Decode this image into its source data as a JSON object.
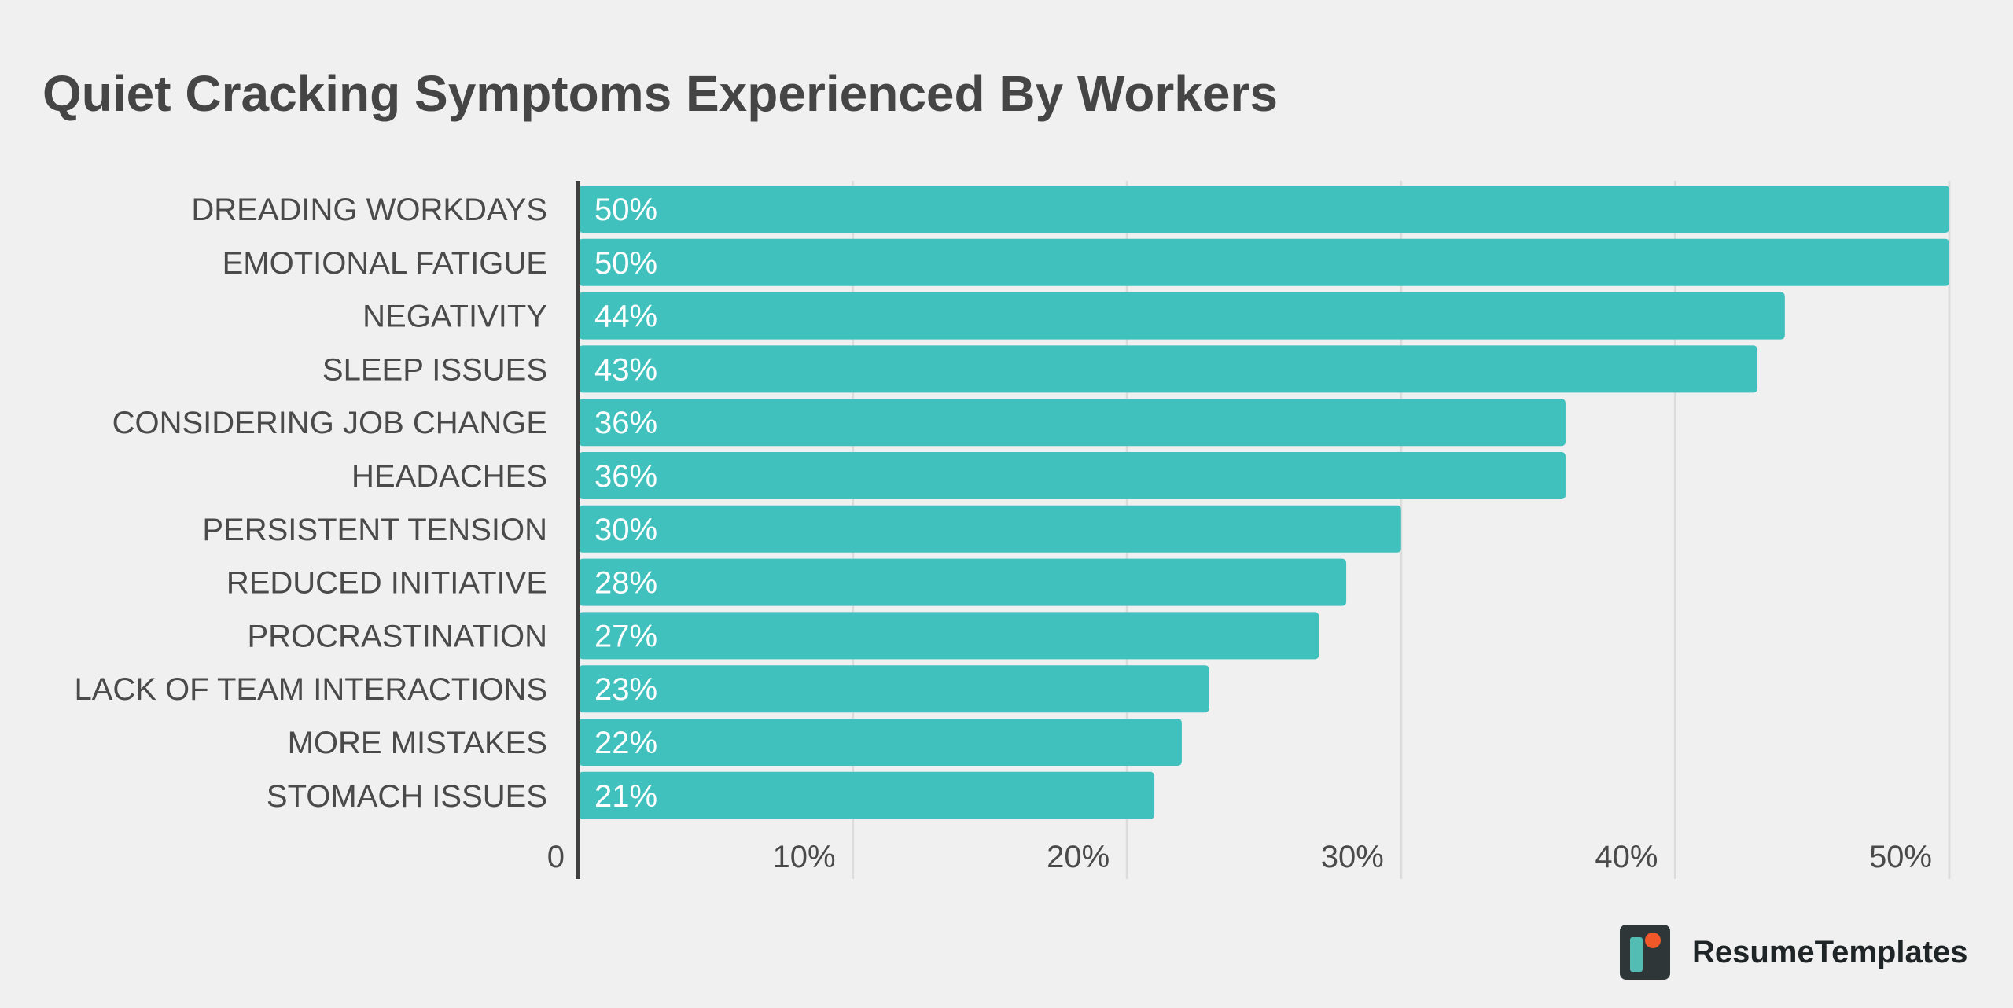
{
  "chart_data": {
    "type": "bar",
    "orientation": "horizontal",
    "title": "Quiet Cracking Symptoms Experienced By Workers",
    "categories": [
      "DREADING WORKDAYS",
      "EMOTIONAL FATIGUE",
      "NEGATIVITY",
      "SLEEP ISSUES",
      "CONSIDERING JOB CHANGE",
      "HEADACHES",
      "PERSISTENT TENSION",
      "REDUCED INITIATIVE",
      "PROCRASTINATION",
      "LACK OF TEAM INTERACTIONS",
      "MORE MISTAKES",
      "STOMACH ISSUES"
    ],
    "values": [
      50,
      50,
      44,
      43,
      36,
      36,
      30,
      28,
      27,
      23,
      22,
      21
    ],
    "value_labels": [
      "50%",
      "50%",
      "44%",
      "43%",
      "36%",
      "36%",
      "30%",
      "28%",
      "27%",
      "23%",
      "22%",
      "21%"
    ],
    "xlim": [
      0,
      50
    ],
    "x_ticks": [
      0,
      10,
      20,
      30,
      40,
      50
    ],
    "x_tick_labels": [
      "0",
      "10%",
      "20%",
      "30%",
      "40%",
      "50%"
    ],
    "xlabel": "",
    "ylabel": "",
    "grid": true,
    "bar_color": "#41c1bd",
    "text_color": "#4a4a4a",
    "grid_color": "#dcdcdc",
    "axis_color": "#3f3f3f"
  },
  "branding": {
    "logo_name": "ResumeTemplates",
    "logo_icon": "resume-templates-logo-icon"
  }
}
